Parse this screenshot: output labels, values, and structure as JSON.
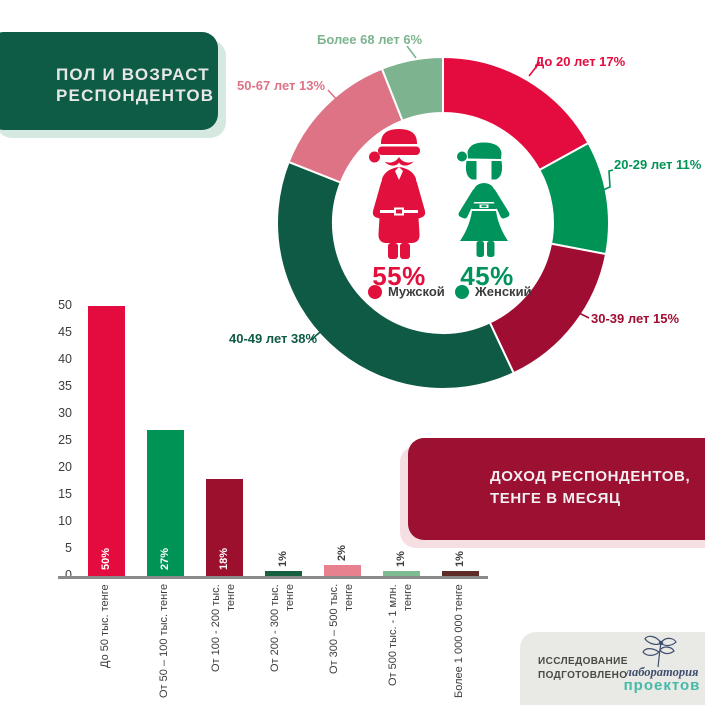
{
  "title_box": {
    "line1": "ПОЛ И ВОЗРАСТ",
    "line2": "РЕСПОНДЕНТОВ"
  },
  "income_box": {
    "line1": "ДОХОД РЕСПОНДЕНТОВ,",
    "line2": "ТЕНГЕ В МЕСЯЦ"
  },
  "gender": {
    "male_pct": "55%",
    "male_label": "Мужской",
    "female_pct": "45%",
    "female_label": "Женский"
  },
  "footer": {
    "prepared_line1": "ИССЛЕДОВАНИЕ",
    "prepared_line2": "ПОДГОТОВЛЕНО",
    "logo_top": "лаборатория",
    "logo_bottom": "проектов"
  },
  "colors": {
    "male": "#e2103c",
    "female": "#00935c",
    "title_box_bg": "#0e5c46",
    "title_box_shadow": "#d5e9e0",
    "income_box_bg": "#9c1032",
    "income_box_shadow": "#f6dfe2",
    "footer_bg": "#e9e9e6",
    "axis_gray": "#8a8a8a",
    "text_dark": "#3c3c3c",
    "logo_navy": "#3f4e6e",
    "logo_teal": "#46b9a8"
  },
  "chart_data": [
    {
      "type": "pie",
      "donut": true,
      "title": "ПОЛ И ВОЗРАСТ РЕСПОНДЕНТОВ",
      "labels": [
        "До 20 лет 17%",
        "20-29 лет 11%",
        "30-39 лет 15%",
        "40-49 лет 38%",
        "50-67 лет 13%",
        "Более 68 лет 6%"
      ],
      "values": [
        17,
        11,
        15,
        38,
        13,
        6
      ],
      "colors": [
        "#e40b3e",
        "#009356",
        "#a00d33",
        "#0e5a44",
        "#de7386",
        "#7db48f"
      ],
      "start_angle_deg": 0,
      "direction": "clockwise",
      "center": {
        "male_pct": 55,
        "female_pct": 45
      }
    },
    {
      "type": "bar",
      "title": "ДОХОД РЕСПОНДЕНТОВ, ТЕНГЕ В МЕСЯЦ",
      "categories": [
        "До 50 тыс. тенге",
        "От 50 – 100 тыс. тенге",
        "От 100 - 200 тыс.\nтенге",
        "От 200 - 300 тыс.\nтенге",
        "От 300 – 500 тыс.\nтенге",
        "От 500 тыс. - 1 млн.\nтенге",
        "Более 1 000 000 тенге"
      ],
      "values": [
        50,
        27,
        18,
        1,
        2,
        1,
        1
      ],
      "value_labels": [
        "50%",
        "27%",
        "18%",
        "1%",
        "2%",
        "1%",
        "1%"
      ],
      "colors": [
        "#e40b3e",
        "#009356",
        "#9c102e",
        "#15613f",
        "#e8818f",
        "#7fbb90",
        "#5e2b26"
      ],
      "ylim": [
        0,
        50
      ],
      "ytick_step": 5,
      "grid": false,
      "ylabel": "",
      "xlabel": ""
    }
  ]
}
